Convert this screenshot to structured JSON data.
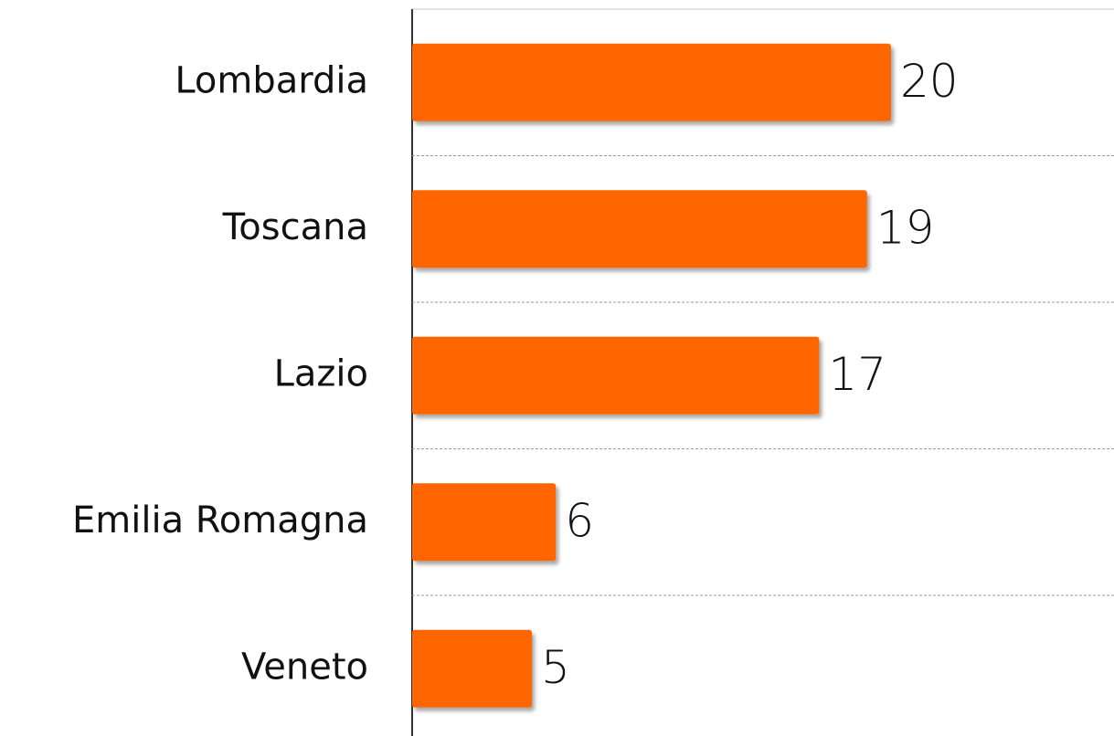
{
  "chart_data": {
    "type": "bar",
    "orientation": "horizontal",
    "categories": [
      "Lombardia",
      "Toscana",
      "Lazio",
      "Emilia Romagna",
      "Veneto"
    ],
    "values": [
      20,
      19,
      17,
      6,
      5
    ],
    "color": "#ff6600",
    "grid": true
  }
}
